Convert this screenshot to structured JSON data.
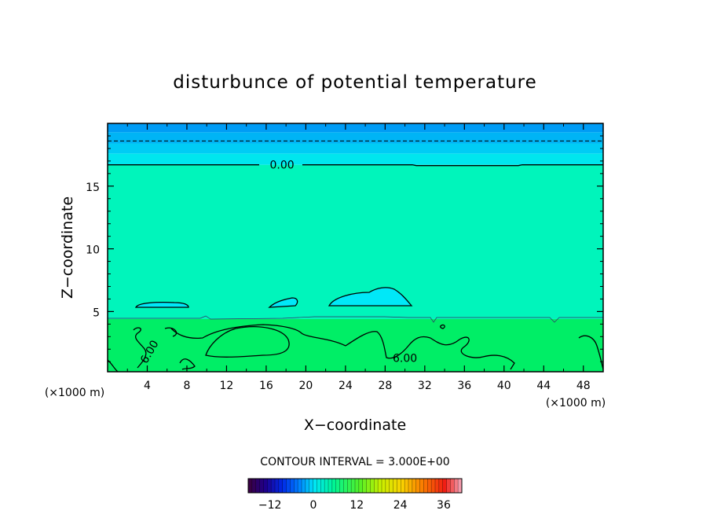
{
  "chart_data": {
    "type": "heatmap",
    "title": "disturbunce of potential temperature",
    "xlabel": "X−coordinate",
    "ylabel": "Z−coordinate",
    "x_unit_left": "(×1000 m)",
    "x_unit_right": "(×1000 m)",
    "xlim": [
      0,
      50
    ],
    "ylim": [
      0.2,
      20
    ],
    "x_ticks": [
      "4",
      "8",
      "12",
      "16",
      "20",
      "24",
      "28",
      "32",
      "36",
      "40",
      "44",
      "48"
    ],
    "y_ticks": [
      "5",
      "10",
      "15"
    ],
    "contour_interval_label": "CONTOUR INTERVAL = 3.000E+00",
    "colorbar_ticks": [
      "−12",
      "0",
      "12",
      "24",
      "36"
    ],
    "colorbar_range": [
      -18,
      41
    ],
    "bands": [
      {
        "z_from": 0.2,
        "z_to": 4.4,
        "value": 6,
        "color": "#00ee66"
      },
      {
        "z_from": 4.4,
        "z_to": 16.7,
        "value": 2,
        "color": "#00f5bb"
      },
      {
        "z_from": 16.7,
        "z_to": 17.6,
        "value": -1,
        "color": "#00e6ee"
      },
      {
        "z_from": 17.6,
        "z_to": 18.4,
        "value": -2,
        "color": "#00ccf5"
      },
      {
        "z_from": 18.4,
        "z_to": 19.3,
        "value": -3,
        "color": "#00b4f5"
      },
      {
        "z_from": 19.3,
        "z_to": 20,
        "value": -4,
        "color": "#009cf5"
      }
    ],
    "contour_labels": [
      {
        "text": "0.00",
        "x": 17.6,
        "z": 16.7
      },
      {
        "text": "6.00",
        "x": 4.2,
        "z": 1.8
      },
      {
        "text": "6.00",
        "x": 30.0,
        "z": 1.3
      }
    ],
    "zero_contour_z": 16.7,
    "dashed_contour_z": 18.6,
    "colors": {
      "ink": "#000000",
      "background": "#ffffff"
    }
  }
}
